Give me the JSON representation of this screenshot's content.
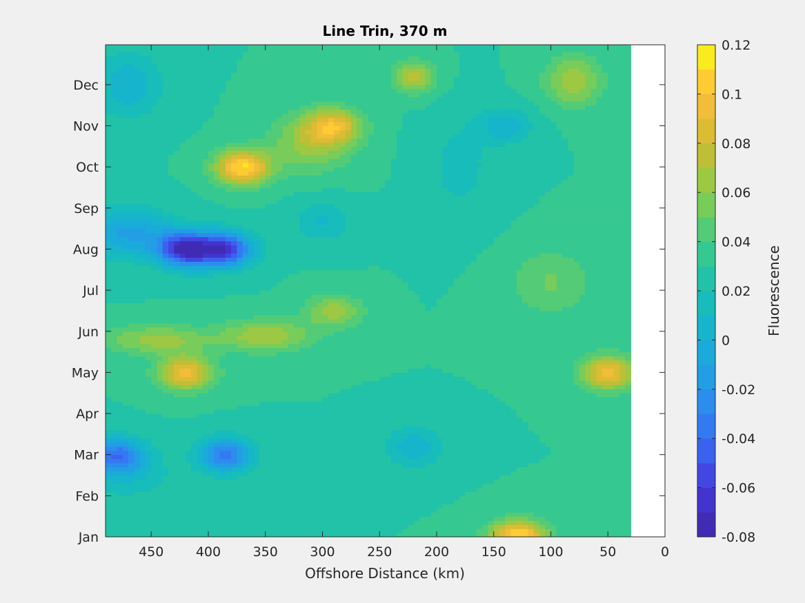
{
  "chart_data": {
    "type": "heatmap",
    "subtype": "filled-contour",
    "title": "Line Trin, 370 m",
    "xlabel": "Offshore Distance (km)",
    "ylabel": "",
    "x_direction": "reversed",
    "xlim": [
      0,
      490
    ],
    "xticks": [
      "450",
      "400",
      "350",
      "300",
      "250",
      "200",
      "150",
      "100",
      "50",
      "0"
    ],
    "y_ticks": [
      "Jan",
      "Feb",
      "Mar",
      "Apr",
      "May",
      "Jun",
      "Jul",
      "Aug",
      "Sep",
      "Oct",
      "Nov",
      "Dec"
    ],
    "data_x_range_km": [
      30,
      490
    ],
    "colorbar": {
      "label": "Fluorescence",
      "range": [
        -0.08,
        0.12
      ],
      "ticks": [
        "0.12",
        "0.1",
        "0.08",
        "0.06",
        "0.04",
        "0.02",
        "0",
        "-0.02",
        "-0.04",
        "-0.06",
        "-0.08"
      ],
      "step": 0.01,
      "colormap": "parula"
    },
    "features": [
      {
        "x": 370,
        "month": "Oct",
        "value": 0.12
      },
      {
        "x": 420,
        "month": "Aug",
        "value": -0.08
      },
      {
        "x": 385,
        "month": "Aug",
        "value": -0.07
      },
      {
        "x": 420,
        "month": "May",
        "value": 0.1
      },
      {
        "x": 290,
        "month": "Nov",
        "value": 0.09
      },
      {
        "x": 50,
        "month": "May",
        "value": 0.1
      },
      {
        "x": 480,
        "month": "Mar",
        "value": -0.04
      },
      {
        "x": 385,
        "month": "Mar",
        "value": -0.04
      },
      {
        "x": 140,
        "month": "Nov",
        "value": 0.0
      },
      {
        "x": 130,
        "month": "Jan",
        "value": 0.09
      }
    ]
  }
}
